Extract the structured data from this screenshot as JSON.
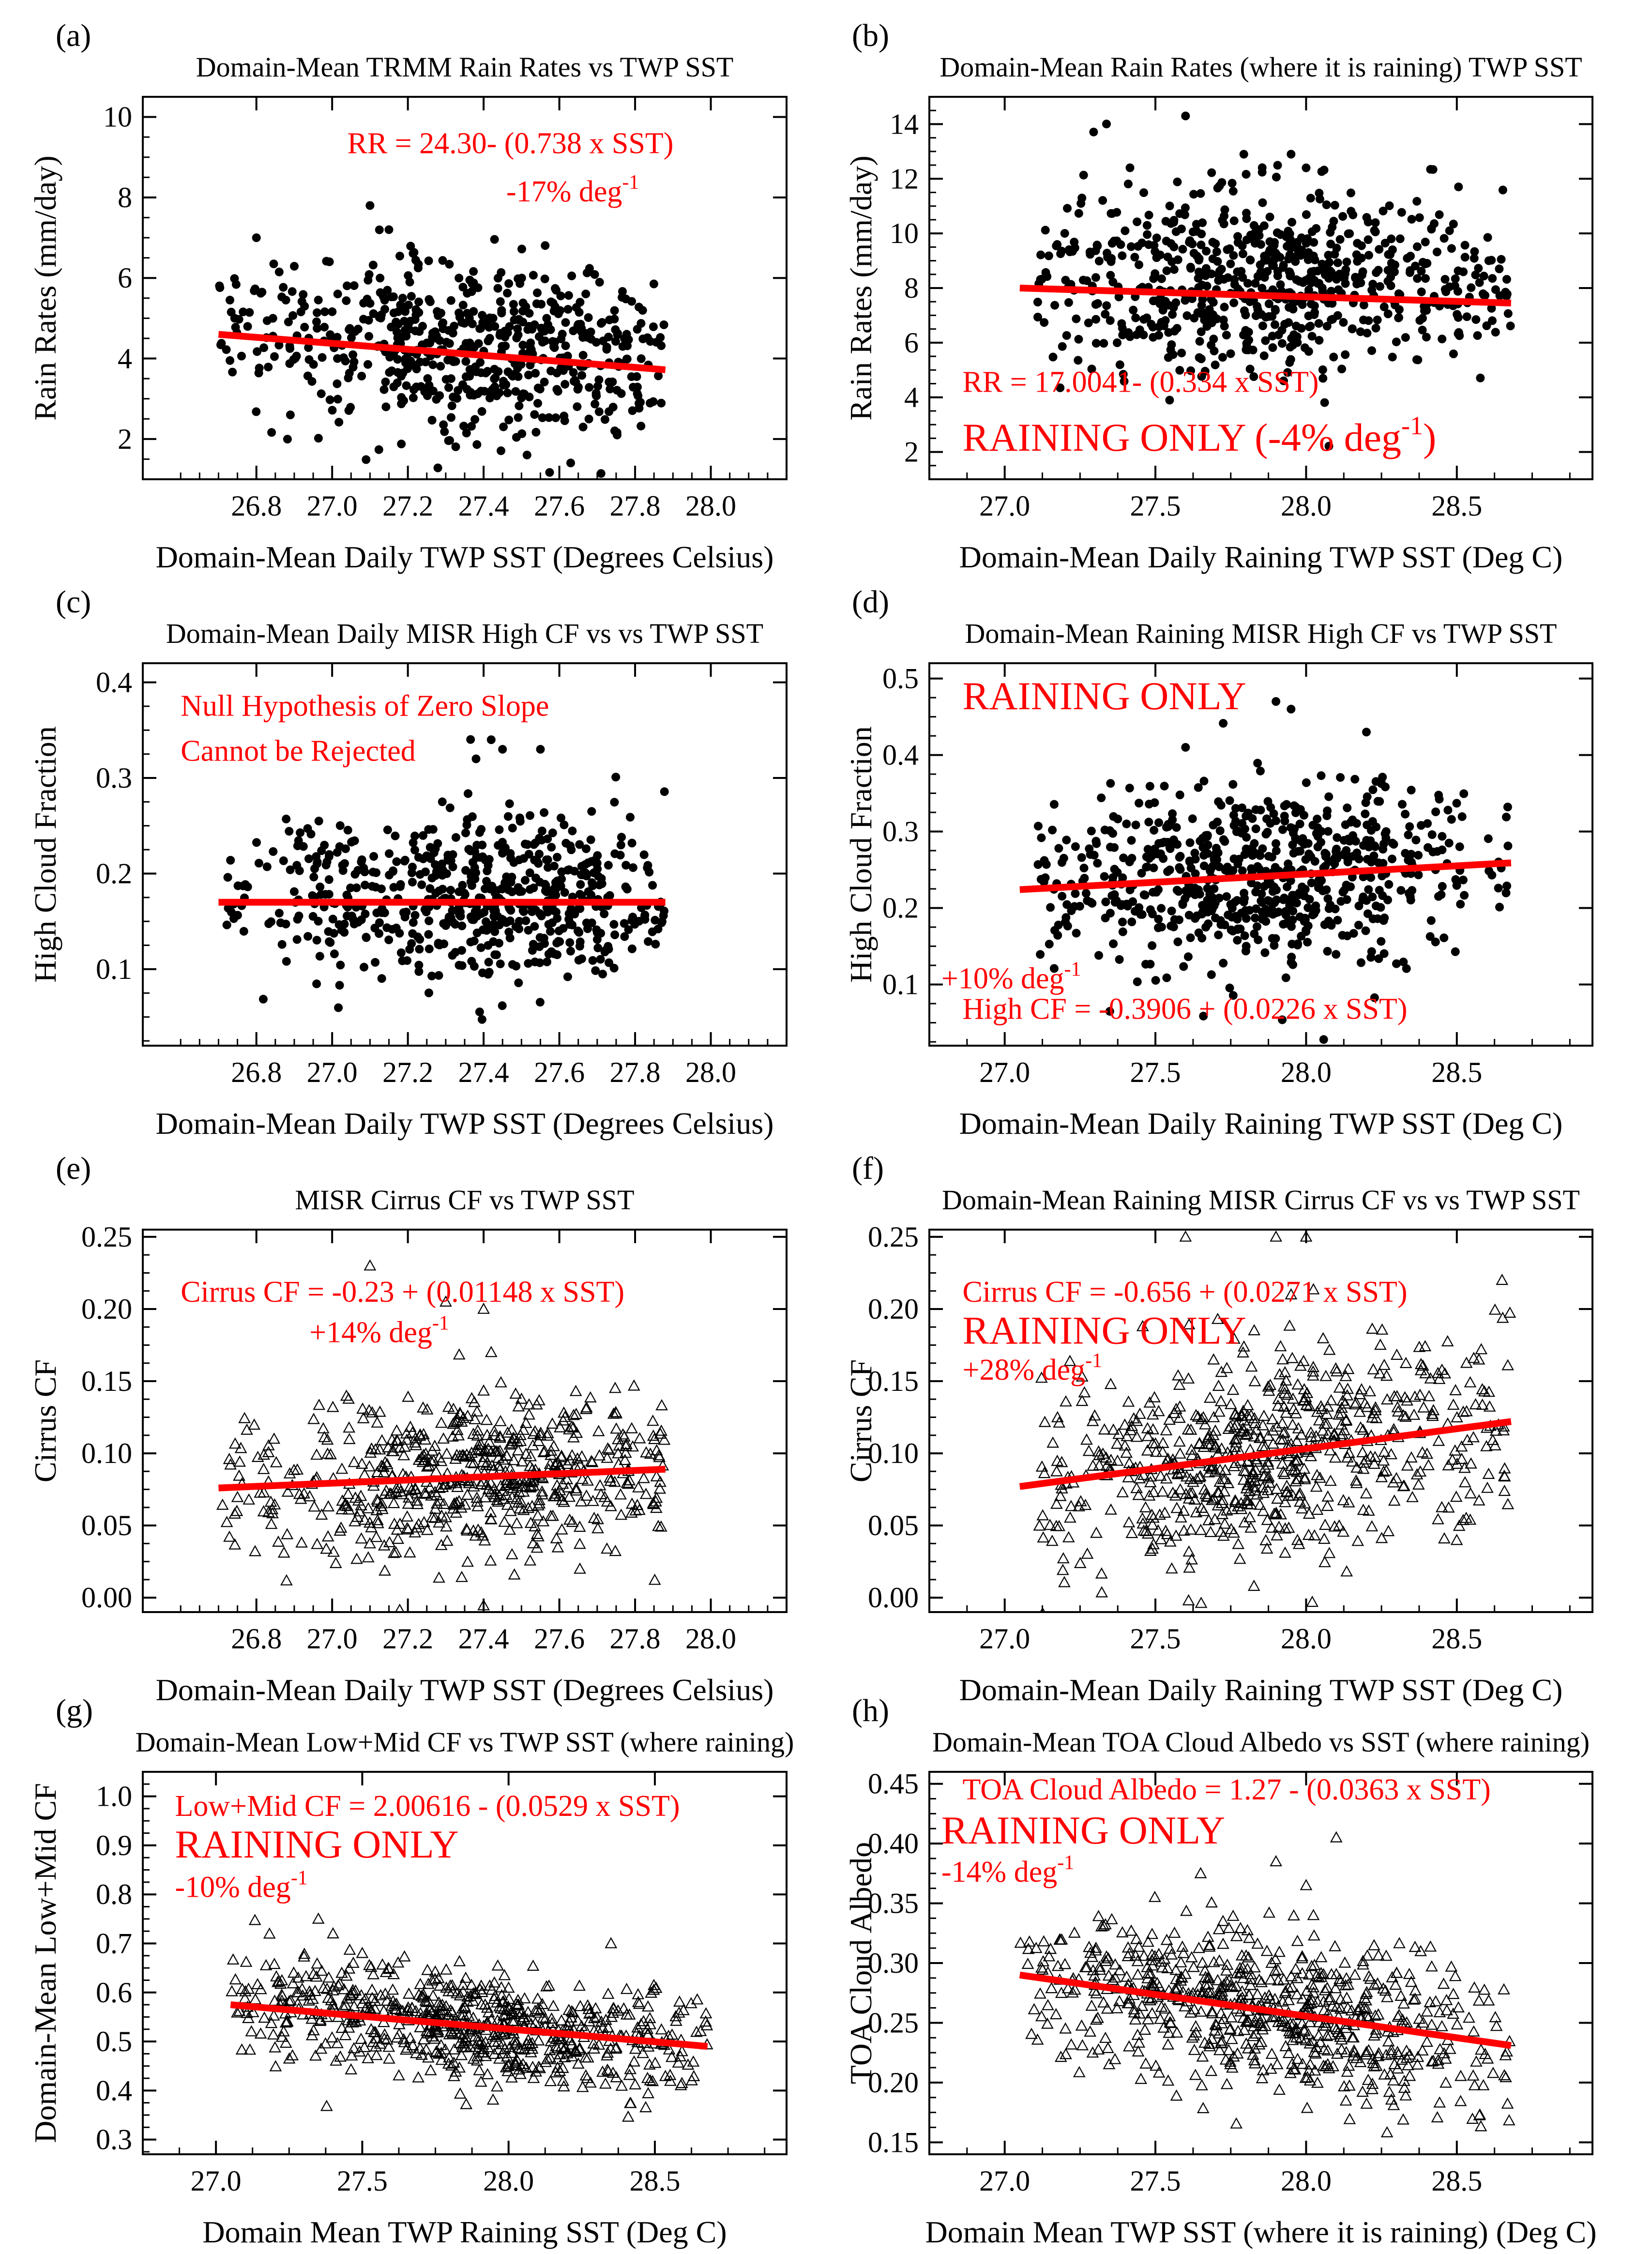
{
  "chart_data": [
    {
      "id": "a",
      "type": "scatter",
      "panel_label": "(a)",
      "title": "Domain-Mean TRMM Rain Rates vs TWP SST",
      "xlabel": "Domain-Mean Daily TWP SST (Degrees Celsius)",
      "ylabel": "Rain Rates (mm/day)",
      "xlim": [
        26.5,
        28.2
      ],
      "ylim": [
        1.0,
        10.5
      ],
      "xticks": [
        26.8,
        27.0,
        27.2,
        27.4,
        27.6,
        27.8,
        28.0
      ],
      "yticks": [
        2,
        4,
        6,
        8,
        10
      ],
      "x_decimals": 1,
      "y_decimals": 0,
      "marker": "dot",
      "cloud": {
        "x_min": 26.7,
        "x_max": 27.88,
        "x_peak": 27.4,
        "y_center": 4.3,
        "y_spread": 1.1,
        "count": 620,
        "outliers": [
          [
            27.1,
            7.8
          ],
          [
            27.15,
            7.2
          ],
          [
            26.8,
            7.0
          ]
        ]
      },
      "fit": {
        "x": [
          26.7,
          27.88
        ],
        "y": [
          4.6,
          3.72
        ]
      },
      "annotations": [
        {
          "text": "RR = 24.30- (0.738 x SST)",
          "x": 27.04,
          "y": 9.1,
          "size": "sm"
        },
        {
          "text": "-17% deg",
          "sup": "-1",
          "x": 27.46,
          "y": 7.9,
          "size": "sm"
        }
      ]
    },
    {
      "id": "b",
      "type": "scatter",
      "panel_label": "(b)",
      "title": "Domain-Mean Rain Rates (where it is raining) TWP SST",
      "xlabel": "Domain-Mean Daily Raining TWP SST (Deg C)",
      "ylabel": "Rain Rates (mm/day)",
      "xlim": [
        26.75,
        28.95
      ],
      "ylim": [
        1.0,
        15.0
      ],
      "xticks": [
        27.0,
        27.5,
        28.0,
        28.5
      ],
      "yticks": [
        2,
        4,
        6,
        8,
        10,
        12,
        14
      ],
      "x_decimals": 1,
      "y_decimals": 0,
      "marker": "dot",
      "cloud": {
        "x_min": 27.1,
        "x_max": 28.68,
        "x_peak": 27.85,
        "y_center": 8.3,
        "y_spread": 1.7,
        "count": 700,
        "outliers": [
          [
            27.6,
            14.3
          ],
          [
            27.95,
            12.9
          ],
          [
            28.0,
            12.4
          ]
        ]
      },
      "fit": {
        "x": [
          27.05,
          28.68
        ],
        "y": [
          8.0,
          7.45
        ]
      },
      "annotations": [
        {
          "text": "RR = 17.0041- (0.334 x SST)",
          "x": 26.86,
          "y": 4.2,
          "size": "sm"
        },
        {
          "text": "RAINING ONLY (-4% deg",
          "sup": "-1",
          "tail": ")",
          "x": 26.86,
          "y": 2.05,
          "size": "lg"
        }
      ]
    },
    {
      "id": "c",
      "type": "scatter",
      "panel_label": "(c)",
      "title": "Domain-Mean Daily MISR High CF vs vs TWP SST",
      "xlabel": "Domain-Mean Daily TWP SST (Degrees Celsius)",
      "ylabel": "High Cloud Fraction",
      "xlim": [
        26.5,
        28.2
      ],
      "ylim": [
        0.02,
        0.42
      ],
      "xticks": [
        26.8,
        27.0,
        27.2,
        27.4,
        27.6,
        27.8,
        28.0
      ],
      "yticks": [
        0.1,
        0.2,
        0.3,
        0.4
      ],
      "x_decimals": 1,
      "y_decimals": 1,
      "marker": "dot",
      "cloud": {
        "x_min": 26.7,
        "x_max": 27.88,
        "x_peak": 27.4,
        "y_center": 0.175,
        "y_spread": 0.045,
        "count": 620,
        "outliers": [
          [
            27.42,
            0.34
          ],
          [
            27.45,
            0.33
          ],
          [
            27.55,
            0.33
          ],
          [
            27.38,
            0.32
          ]
        ]
      },
      "fit": {
        "x": [
          26.7,
          27.88
        ],
        "y": [
          0.17,
          0.17
        ]
      },
      "annotations": [
        {
          "text": "Null Hypothesis of Zero Slope",
          "x": 26.6,
          "y": 0.365,
          "size": "sm"
        },
        {
          "text": "Cannot be Rejected",
          "x": 26.6,
          "y": 0.318,
          "size": "sm"
        }
      ]
    },
    {
      "id": "d",
      "type": "scatter",
      "panel_label": "(d)",
      "title": "Domain-Mean Raining MISR High CF vs TWP SST",
      "xlabel": "Domain-Mean Daily Raining TWP SST (Deg C)",
      "ylabel": "High Cloud Fraction",
      "xlim": [
        26.75,
        28.95
      ],
      "ylim": [
        0.02,
        0.52
      ],
      "xticks": [
        27.0,
        27.5,
        28.0,
        28.5
      ],
      "yticks": [
        0.1,
        0.2,
        0.3,
        0.4,
        0.5
      ],
      "x_decimals": 1,
      "y_decimals": 1,
      "marker": "dot",
      "cloud": {
        "x_min": 27.1,
        "x_max": 28.68,
        "x_peak": 27.85,
        "y_center": 0.245,
        "y_spread": 0.06,
        "count": 700,
        "outliers": [
          [
            27.9,
            0.47
          ],
          [
            27.95,
            0.46
          ],
          [
            28.2,
            0.43
          ],
          [
            27.6,
            0.41
          ]
        ]
      },
      "fit": {
        "x": [
          27.05,
          28.68
        ],
        "y": [
          0.224,
          0.259
        ]
      },
      "annotations": [
        {
          "text": "RAINING ONLY",
          "x": 26.86,
          "y": 0.46,
          "size": "lg"
        },
        {
          "text": "+10% deg",
          "sup": "-1",
          "x": 26.79,
          "y": 0.095,
          "size": "sm"
        },
        {
          "text": "High CF = -0.3906 + (0.0226 x SST)",
          "x": 26.86,
          "y": 0.055,
          "size": "sm"
        }
      ]
    },
    {
      "id": "e",
      "type": "scatter",
      "panel_label": "(e)",
      "title": "MISR Cirrus CF vs TWP SST",
      "xlabel": "Domain-Mean Daily TWP SST (Degrees Celsius)",
      "ylabel": "Cirrus CF",
      "xlim": [
        26.5,
        28.2
      ],
      "ylim": [
        -0.01,
        0.255
      ],
      "xticks": [
        26.8,
        27.0,
        27.2,
        27.4,
        27.6,
        27.8,
        28.0
      ],
      "yticks": [
        0.0,
        0.05,
        0.1,
        0.15,
        0.2,
        0.25
      ],
      "x_decimals": 1,
      "y_decimals": 2,
      "marker": "triangle",
      "cloud": {
        "x_min": 26.7,
        "x_max": 27.88,
        "x_peak": 27.4,
        "y_center": 0.082,
        "y_spread": 0.028,
        "count": 620,
        "outliers": [
          [
            27.1,
            0.23
          ],
          [
            27.3,
            0.205
          ],
          [
            27.4,
            0.2
          ],
          [
            27.42,
            0.17
          ]
        ]
      },
      "fit": {
        "x": [
          26.7,
          27.88
        ],
        "y": [
          0.076,
          0.089
        ]
      },
      "annotations": [
        {
          "text": "Cirrus CF = -0.23 + (0.01148 x SST)",
          "x": 26.6,
          "y": 0.205,
          "size": "sm"
        },
        {
          "text": "+14% deg",
          "sup": "-1",
          "x": 26.94,
          "y": 0.177,
          "size": "sm"
        }
      ]
    },
    {
      "id": "f",
      "type": "scatter",
      "panel_label": "(f)",
      "title": "Domain-Mean Raining MISR Cirrus CF vs vs TWP SST",
      "xlabel": "Domain-Mean Daily Raining TWP SST (Deg C)",
      "ylabel": "Cirrus CF",
      "xlim": [
        26.75,
        28.95
      ],
      "ylim": [
        -0.01,
        0.255
      ],
      "xticks": [
        27.0,
        27.5,
        28.0,
        28.5
      ],
      "yticks": [
        0.0,
        0.05,
        0.1,
        0.15,
        0.2,
        0.25
      ],
      "x_decimals": 1,
      "y_decimals": 2,
      "marker": "triangle",
      "cloud": {
        "x_min": 27.1,
        "x_max": 28.68,
        "x_peak": 27.85,
        "y_center": 0.098,
        "y_spread": 0.035,
        "count": 700,
        "outliers": [
          [
            27.6,
            0.25
          ],
          [
            27.9,
            0.25
          ],
          [
            28.0,
            0.25
          ],
          [
            28.65,
            0.22
          ],
          [
            27.95,
            0.21
          ]
        ]
      },
      "fit": {
        "x": [
          27.05,
          28.68
        ],
        "y": [
          0.077,
          0.122
        ]
      },
      "annotations": [
        {
          "text": "Cirrus CF = -0.656 + (0.0271 x SST)",
          "x": 26.86,
          "y": 0.205,
          "size": "sm"
        },
        {
          "text": "RAINING ONLY",
          "x": 26.86,
          "y": 0.176,
          "size": "lg"
        },
        {
          "text": "+28% deg",
          "sup": "-1",
          "x": 26.86,
          "y": 0.151,
          "size": "sm"
        }
      ]
    },
    {
      "id": "g",
      "type": "scatter",
      "panel_label": "(g)",
      "title": "Domain-Mean Low+Mid CF vs TWP SST (where raining)",
      "xlabel": "Domain Mean TWP Raining SST (Deg C)",
      "ylabel": "Domain-Mean Low+Mid CF",
      "xlim": [
        26.75,
        28.95
      ],
      "ylim": [
        0.27,
        1.05
      ],
      "xticks": [
        27.0,
        27.5,
        28.0,
        28.5
      ],
      "yticks": [
        0.3,
        0.4,
        0.5,
        0.6,
        0.7,
        0.8,
        0.9,
        1.0
      ],
      "x_decimals": 1,
      "y_decimals": 1,
      "marker": "triangle",
      "cloud": {
        "x_min": 27.05,
        "x_max": 28.68,
        "x_peak": 27.85,
        "y_center": 0.53,
        "y_spread": 0.055,
        "count": 700,
        "outliers": [
          [
            27.35,
            0.75
          ],
          [
            27.4,
            0.72
          ],
          [
            28.35,
            0.7
          ],
          [
            27.5,
            0.68
          ]
        ]
      },
      "fit": {
        "x": [
          27.05,
          28.68
        ],
        "y": [
          0.575,
          0.49
        ]
      },
      "annotations": [
        {
          "text": "Low+Mid CF = 2.00616 - (0.0529 x SST)",
          "x": 26.86,
          "y": 0.96,
          "size": "sm"
        },
        {
          "text": "RAINING ONLY",
          "x": 26.86,
          "y": 0.875,
          "size": "lg"
        },
        {
          "text": "-10% deg",
          "sup": "-1",
          "x": 26.86,
          "y": 0.795,
          "size": "sm"
        }
      ]
    },
    {
      "id": "h",
      "type": "scatter",
      "panel_label": "(h)",
      "title": "Domain-Mean TOA Cloud Albedo vs SST (where raining)",
      "xlabel": "Domain Mean TWP SST (where it is raining) (Deg C)",
      "ylabel": "TOA Cloud Albedo",
      "xlim": [
        26.75,
        28.95
      ],
      "ylim": [
        0.14,
        0.46
      ],
      "xticks": [
        27.0,
        27.5,
        28.0,
        28.5
      ],
      "yticks": [
        0.15,
        0.2,
        0.25,
        0.3,
        0.35,
        0.4,
        0.45
      ],
      "x_decimals": 1,
      "y_decimals": 2,
      "marker": "triangle",
      "cloud": {
        "x_min": 27.05,
        "x_max": 28.68,
        "x_peak": 27.85,
        "y_center": 0.262,
        "y_spread": 0.033,
        "count": 700,
        "outliers": [
          [
            28.1,
            0.405
          ],
          [
            27.9,
            0.385
          ],
          [
            27.65,
            0.375
          ],
          [
            28.0,
            0.365
          ]
        ]
      },
      "fit": {
        "x": [
          27.05,
          28.68
        ],
        "y": [
          0.29,
          0.231
        ]
      },
      "annotations": [
        {
          "text": "TOA Cloud Albedo = 1.27 - (0.0363 x SST)",
          "x": 26.86,
          "y": 0.437,
          "size": "sm"
        },
        {
          "text": "RAINING ONLY",
          "x": 26.79,
          "y": 0.4,
          "size": "lg"
        },
        {
          "text": "-14% deg",
          "sup": "-1",
          "x": 26.79,
          "y": 0.368,
          "size": "sm"
        }
      ]
    }
  ],
  "colors": {
    "points": "#000000",
    "fit_line": "#ff0000",
    "annotation": "#ff0000",
    "axes": "#000000"
  }
}
